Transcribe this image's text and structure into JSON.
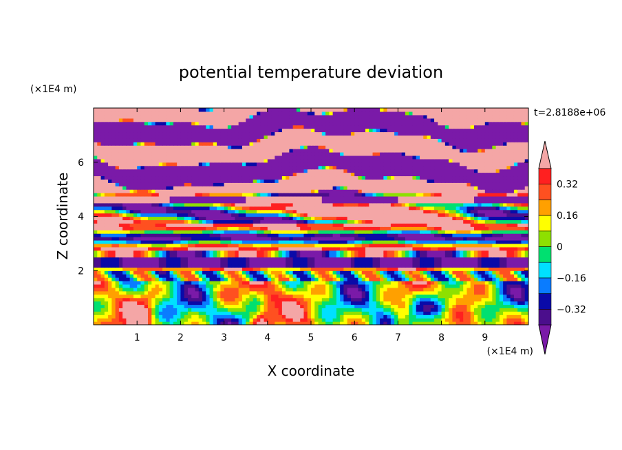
{
  "chart_data": {
    "type": "heatmap",
    "title": "potential temperature deviation",
    "xlabel": "X coordinate",
    "ylabel": "Z coordinate",
    "x_unit": "(×1E4 m)",
    "y_unit": "(×1E4 m)",
    "time_label": "t=2.8188e+06",
    "xlim": [
      0,
      10
    ],
    "ylim": [
      0,
      8
    ],
    "x_ticks": [
      1,
      2,
      3,
      4,
      5,
      6,
      7,
      8,
      9
    ],
    "y_ticks": [
      2,
      4,
      6
    ],
    "colorbar": {
      "levels": [
        -0.4,
        -0.32,
        -0.24,
        -0.16,
        -0.08,
        0,
        0.08,
        0.16,
        0.24,
        0.32,
        0.4
      ],
      "tick_values": [
        -0.32,
        -0.16,
        0,
        0.16,
        0.32
      ],
      "tick_labels": [
        "−0.32",
        "−0.16",
        "0",
        "0.16",
        "0.32"
      ],
      "colors": [
        "#7a1aa8",
        "#4b0e8c",
        "#0a0aa8",
        "#0a7cff",
        "#00e0ff",
        "#00e070",
        "#8ee000",
        "#ffff00",
        "#ffa000",
        "#ff5020",
        "#ff2020",
        "#f4a6a6"
      ],
      "extend": "both"
    },
    "regions": [
      {
        "z_range": [
          7.2,
          8.0
        ],
        "pattern": "alternating pink and purple bands"
      },
      {
        "z_range": [
          4.8,
          7.2
        ],
        "pattern": "alternating pink and purple bands with red/yellow streaks"
      },
      {
        "z_range": [
          3.8,
          4.8
        ],
        "pattern": "orange/red warm anomaly around x=5-8"
      },
      {
        "z_range": [
          2.0,
          3.8
        ],
        "pattern": "horizontal cyan/green/blue/purple layers"
      },
      {
        "z_range": [
          0.0,
          2.0
        ],
        "pattern": "turbulent yellow/green/cyan plumes"
      }
    ]
  }
}
